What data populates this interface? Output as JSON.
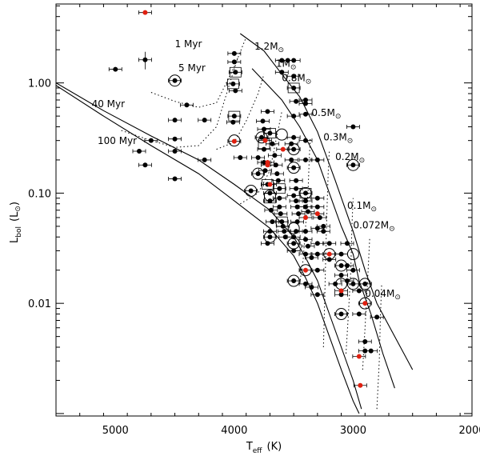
{
  "chart_data": {
    "type": "scatter",
    "title": "",
    "xlabel_main": "T",
    "xlabel_sub": "eff",
    "xlabel_unit": "(K)",
    "ylabel_main": "L",
    "ylabel_sub": "bol",
    "ylabel_unit": "(L",
    "ylabel_close": ")",
    "x_reversed": true,
    "xlim": [
      5500,
      2000
    ],
    "ylog": true,
    "ylim": [
      0.00095,
      5.2
    ],
    "x_ticks": [
      5000,
      4000,
      3000,
      2000
    ],
    "x_tick_labels": [
      "5000",
      "4000",
      "3000",
      "2000"
    ],
    "y_ticks": [
      0.01,
      0.1,
      1.0
    ],
    "y_tick_labels": [
      "0.01",
      "0.10",
      "1.00"
    ],
    "isochrones": [
      {
        "label": "1 Myr",
        "points": [
          [
            3950,
            2.8
          ],
          [
            3750,
            1.95
          ],
          [
            3600,
            1.2
          ],
          [
            3450,
            0.75
          ],
          [
            3300,
            0.36
          ],
          [
            3150,
            0.13
          ],
          [
            3000,
            0.045
          ],
          [
            2900,
            0.02
          ],
          [
            2800,
            0.01
          ],
          [
            2650,
            0.005
          ],
          [
            2500,
            0.0025
          ]
        ]
      },
      {
        "label": "5 Myr",
        "points": [
          [
            3850,
            1.35
          ],
          [
            3600,
            0.7
          ],
          [
            3450,
            0.4
          ],
          [
            3300,
            0.2
          ],
          [
            3200,
            0.1
          ],
          [
            3100,
            0.05
          ],
          [
            3000,
            0.028
          ],
          [
            2950,
            0.016
          ],
          [
            2850,
            0.008
          ],
          [
            2750,
            0.0035
          ],
          [
            2650,
            0.0017
          ]
        ]
      },
      {
        "label": "40 Myr",
        "points": [
          [
            5500,
            1.0
          ],
          [
            5100,
            0.56
          ],
          [
            4700,
            0.33
          ],
          [
            4300,
            0.2
          ],
          [
            4000,
            0.12
          ],
          [
            3700,
            0.07
          ],
          [
            3500,
            0.04
          ],
          [
            3400,
            0.026
          ],
          [
            3300,
            0.016
          ],
          [
            3200,
            0.008
          ],
          [
            3100,
            0.004
          ],
          [
            3000,
            0.002
          ],
          [
            2930,
            0.0011
          ]
        ]
      },
      {
        "label": "100 Myr",
        "points": [
          [
            5500,
            0.95
          ],
          [
            5100,
            0.5
          ],
          [
            4700,
            0.27
          ],
          [
            4300,
            0.15
          ],
          [
            4000,
            0.085
          ],
          [
            3700,
            0.048
          ],
          [
            3500,
            0.027
          ],
          [
            3400,
            0.017
          ],
          [
            3300,
            0.01
          ],
          [
            3200,
            0.005
          ],
          [
            3100,
            0.0025
          ],
          [
            3000,
            0.0013
          ],
          [
            2950,
            0.001
          ]
        ]
      }
    ],
    "mass_tracks": [
      {
        "label": "1.2",
        "points": [
          [
            4700,
            0.82
          ],
          [
            4500,
            0.68
          ],
          [
            4300,
            0.6
          ],
          [
            4150,
            0.66
          ],
          [
            4000,
            1.4
          ],
          [
            3900,
            2.6
          ]
        ]
      },
      {
        "label": "1",
        "points": [
          [
            4950,
            0.37
          ],
          [
            4700,
            0.3
          ],
          [
            4500,
            0.26
          ],
          [
            4300,
            0.27
          ],
          [
            4150,
            0.4
          ],
          [
            4050,
            0.9
          ],
          [
            3970,
            1.7
          ]
        ]
      },
      {
        "label": "0.8",
        "points": [
          [
            4150,
            0.25
          ],
          [
            4000,
            0.29
          ],
          [
            3900,
            0.45
          ],
          [
            3800,
            0.8
          ],
          [
            3750,
            1.2
          ]
        ]
      },
      {
        "label": "0.5",
        "points": [
          [
            3950,
            0.08
          ],
          [
            3800,
            0.1
          ],
          [
            3700,
            0.16
          ],
          [
            3650,
            0.3
          ],
          [
            3600,
            0.55
          ]
        ]
      },
      {
        "label": "0.3",
        "points": [
          [
            3450,
            0.015
          ],
          [
            3420,
            0.025
          ],
          [
            3400,
            0.05
          ],
          [
            3380,
            0.1
          ],
          [
            3370,
            0.2
          ],
          [
            3360,
            0.32
          ]
        ]
      },
      {
        "label": "0.2",
        "points": [
          [
            3250,
            0.004
          ],
          [
            3240,
            0.01
          ],
          [
            3230,
            0.03
          ],
          [
            3220,
            0.07
          ],
          [
            3210,
            0.15
          ],
          [
            3200,
            0.25
          ]
        ]
      },
      {
        "label": "0.1",
        "points": [
          [
            3060,
            0.0035
          ],
          [
            3040,
            0.008
          ],
          [
            3020,
            0.02
          ],
          [
            3010,
            0.05
          ],
          [
            3000,
            0.09
          ]
        ]
      },
      {
        "label": "0.072",
        "points": [
          [
            2920,
            0.0025
          ],
          [
            2900,
            0.006
          ],
          [
            2880,
            0.015
          ],
          [
            2860,
            0.04
          ]
        ]
      },
      {
        "label": "0.04",
        "points": [
          [
            2800,
            0.0011
          ],
          [
            2780,
            0.003
          ],
          [
            2770,
            0.008
          ],
          [
            2760,
            0.015
          ]
        ]
      }
    ],
    "annotations": [
      {
        "text": "1 Myr",
        "x": 4500,
        "y": 2.1
      },
      {
        "text": "5 Myr",
        "x": 4470,
        "y": 1.28
      },
      {
        "text": "40 Myr",
        "x": 5200,
        "y": 0.6
      },
      {
        "text": "100 Myr",
        "x": 5150,
        "y": 0.28
      },
      {
        "text": "1.2M",
        "x": 3830,
        "y": 2.0,
        "sub": "⊙"
      },
      {
        "text": "1M",
        "x": 3650,
        "y": 1.4,
        "sub": "⊙"
      },
      {
        "text": "0.8M",
        "x": 3600,
        "y": 1.04,
        "sub": "⊙"
      },
      {
        "text": "0.5M",
        "x": 3350,
        "y": 0.5,
        "sub": "⊙"
      },
      {
        "text": "0.3M",
        "x": 3250,
        "y": 0.3,
        "sub": "⊙"
      },
      {
        "text": "0.2M",
        "x": 3150,
        "y": 0.2,
        "sub": "⊙"
      },
      {
        "text": "0.1M",
        "x": 3050,
        "y": 0.072,
        "sub": "⊙"
      },
      {
        "text": "0.072M",
        "x": 3000,
        "y": 0.048,
        "sub": "⊙"
      },
      {
        "text": "0.04M",
        "x": 2900,
        "y": 0.0115,
        "sub": "⊙"
      }
    ],
    "series": [
      {
        "name": "black",
        "color": "#000000",
        "points": [
          [
            4750,
            1.62
          ],
          [
            5000,
            1.33
          ],
          [
            4500,
            1.05
          ],
          [
            4400,
            0.63
          ],
          [
            4500,
            0.46
          ],
          [
            4500,
            0.31
          ],
          [
            4500,
            0.24
          ],
          [
            4700,
            0.3
          ],
          [
            4800,
            0.24
          ],
          [
            4750,
            0.18
          ],
          [
            4500,
            0.135
          ],
          [
            4250,
            0.2
          ],
          [
            4250,
            0.46
          ],
          [
            4000,
            1.85
          ],
          [
            4000,
            1.55
          ],
          [
            3990,
            1.25
          ],
          [
            4010,
            0.98
          ],
          [
            3990,
            0.85
          ],
          [
            4000,
            0.5
          ],
          [
            4010,
            0.44
          ],
          [
            3950,
            0.21
          ],
          [
            3860,
            0.105
          ],
          [
            3800,
            0.15
          ],
          [
            3800,
            0.21
          ],
          [
            3770,
            0.32
          ],
          [
            3750,
            0.25
          ],
          [
            3750,
            0.19
          ],
          [
            3740,
            0.16
          ],
          [
            3720,
            0.12
          ],
          [
            3700,
            0.1
          ],
          [
            3700,
            0.085
          ],
          [
            3690,
            0.07
          ],
          [
            3680,
            0.055
          ],
          [
            3700,
            0.045
          ],
          [
            3700,
            0.04
          ],
          [
            3720,
            0.035
          ],
          [
            3750,
            0.38
          ],
          [
            3760,
            0.45
          ],
          [
            3720,
            0.55
          ],
          [
            3700,
            0.35
          ],
          [
            3680,
            0.28
          ],
          [
            3660,
            0.22
          ],
          [
            3650,
            0.18
          ],
          [
            3640,
            0.15
          ],
          [
            3630,
            0.13
          ],
          [
            3620,
            0.11
          ],
          [
            3620,
            0.09
          ],
          [
            3620,
            0.075
          ],
          [
            3610,
            0.065
          ],
          [
            3600,
            0.055
          ],
          [
            3590,
            0.05
          ],
          [
            3580,
            0.045
          ],
          [
            3570,
            0.04
          ],
          [
            3600,
            1.6
          ],
          [
            3600,
            1.25
          ],
          [
            3550,
            1.6
          ],
          [
            3500,
            1.6
          ],
          [
            3500,
            1.15
          ],
          [
            3500,
            0.9
          ],
          [
            3480,
            0.68
          ],
          [
            3500,
            0.5
          ],
          [
            3500,
            0.32
          ],
          [
            3520,
            0.28
          ],
          [
            3500,
            0.25
          ],
          [
            3520,
            0.2
          ],
          [
            3500,
            0.17
          ],
          [
            3480,
            0.13
          ],
          [
            3480,
            0.11
          ],
          [
            3500,
            0.095
          ],
          [
            3480,
            0.085
          ],
          [
            3470,
            0.075
          ],
          [
            3460,
            0.065
          ],
          [
            3470,
            0.055
          ],
          [
            3480,
            0.045
          ],
          [
            3500,
            0.04
          ],
          [
            3500,
            0.035
          ],
          [
            3500,
            0.03
          ],
          [
            3500,
            0.016
          ],
          [
            3400,
            0.7
          ],
          [
            3400,
            0.65
          ],
          [
            3400,
            0.52
          ],
          [
            3400,
            0.3
          ],
          [
            3400,
            0.2
          ],
          [
            3400,
            0.1
          ],
          [
            3400,
            0.085
          ],
          [
            3400,
            0.075
          ],
          [
            3380,
            0.068
          ],
          [
            3400,
            0.045
          ],
          [
            3400,
            0.038
          ],
          [
            3380,
            0.033
          ],
          [
            3400,
            0.028
          ],
          [
            3350,
            0.026
          ],
          [
            3300,
            0.035
          ],
          [
            3300,
            0.028
          ],
          [
            3400,
            0.015
          ],
          [
            3350,
            0.014
          ],
          [
            3300,
            0.012
          ],
          [
            3300,
            0.02
          ],
          [
            3300,
            0.2
          ],
          [
            3300,
            0.09
          ],
          [
            3300,
            0.075
          ],
          [
            3280,
            0.06
          ],
          [
            3300,
            0.048
          ],
          [
            3250,
            0.045
          ],
          [
            3250,
            0.05
          ],
          [
            3200,
            0.035
          ],
          [
            3200,
            0.025
          ],
          [
            3100,
            0.028
          ],
          [
            3100,
            0.018
          ],
          [
            3150,
            0.015
          ],
          [
            3100,
            0.022
          ],
          [
            3100,
            0.012
          ],
          [
            3100,
            0.008
          ],
          [
            3050,
            0.016
          ],
          [
            3000,
            0.02
          ],
          [
            3000,
            0.015
          ],
          [
            2950,
            0.013
          ],
          [
            2900,
            0.015
          ],
          [
            2950,
            0.008
          ],
          [
            2800,
            0.0075
          ],
          [
            2900,
            0.0045
          ],
          [
            2850,
            0.0037
          ],
          [
            2900,
            0.0037
          ],
          [
            3000,
            0.4
          ],
          [
            3000,
            0.18
          ],
          [
            3050,
            0.022
          ],
          [
            3050,
            0.035
          ]
        ],
        "rings": [
          [
            4500,
            1.05
          ],
          [
            4000,
            0.3
          ],
          [
            3860,
            0.105
          ],
          [
            3770,
            0.32
          ],
          [
            3600,
            0.34
          ],
          [
            3800,
            0.15
          ],
          [
            3500,
            0.25
          ],
          [
            3500,
            0.17
          ],
          [
            3700,
            0.04
          ],
          [
            3500,
            0.048
          ],
          [
            3500,
            0.035
          ],
          [
            3400,
            0.1
          ],
          [
            3500,
            0.016
          ],
          [
            3400,
            0.02
          ],
          [
            3200,
            0.028
          ],
          [
            3100,
            0.022
          ],
          [
            3100,
            0.015
          ],
          [
            3000,
            0.028
          ],
          [
            3000,
            0.015
          ],
          [
            2900,
            0.015
          ],
          [
            3100,
            0.008
          ],
          [
            3000,
            0.18
          ],
          [
            2900,
            0.01
          ],
          [
            3700,
            0.095
          ]
        ],
        "boxes": [
          [
            3990,
            1.25
          ],
          [
            4010,
            0.98
          ],
          [
            4000,
            0.5
          ],
          [
            3750,
            0.28
          ],
          [
            3720,
            0.12
          ],
          [
            3700,
            0.09
          ],
          [
            3620,
            0.11
          ],
          [
            3600,
            0.055
          ],
          [
            3400,
            0.1
          ],
          [
            3700,
            0.35
          ],
          [
            3500,
            0.9
          ]
        ]
      },
      {
        "name": "red",
        "color": "#e02010",
        "points": [
          [
            4750,
            4.35
          ],
          [
            4000,
            0.295
          ],
          [
            3740,
            0.3
          ],
          [
            3720,
            0.19
          ],
          [
            3720,
            0.18
          ],
          [
            3700,
            0.12
          ],
          [
            3590,
            0.25
          ],
          [
            3400,
            0.06
          ],
          [
            3300,
            0.065
          ],
          [
            3400,
            0.02
          ],
          [
            3200,
            0.028
          ],
          [
            3100,
            0.013
          ],
          [
            2900,
            0.01
          ],
          [
            2950,
            0.0033
          ],
          [
            2940,
            0.0018
          ]
        ]
      }
    ]
  }
}
